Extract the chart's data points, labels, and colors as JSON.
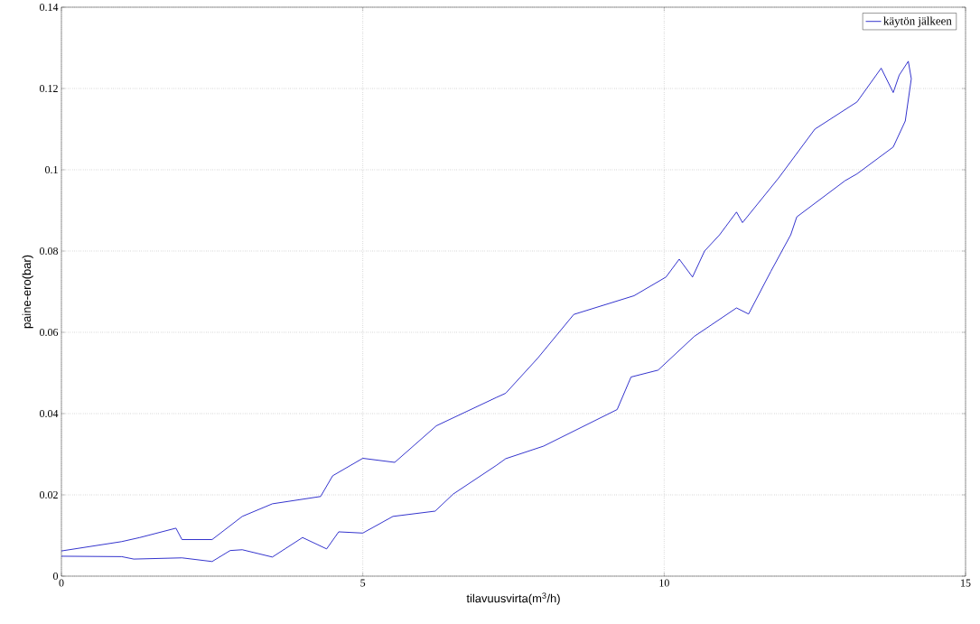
{
  "chart_data": {
    "type": "line",
    "xlabel": "tilavuusvirta(m$^{3}$/h)",
    "ylabel": "paine-ero(bar)",
    "xlim": [
      0,
      15
    ],
    "ylim": [
      0,
      0.14
    ],
    "xticks": [
      0,
      5,
      10,
      15
    ],
    "yticks": [
      0,
      0.02,
      0.04,
      0.06,
      0.08,
      0.1,
      0.12,
      0.14
    ],
    "grid": true,
    "legend": "top right",
    "marker": "none",
    "line_style": "solid",
    "series": [
      {
        "name": "käytön jälkeen",
        "color": "#0000c0",
        "x": [
          0,
          1,
          1.2,
          2,
          2.5,
          2.8,
          3.0,
          3.5,
          4,
          4.4,
          4.6,
          5,
          5.5,
          6.2,
          6.5,
          7.22,
          7.37,
          8,
          9.22,
          9.45,
          9.9,
          10.5,
          11.2,
          11.4,
          11.77,
          12.1,
          12.2,
          13.0,
          13.2,
          13.8,
          14.0,
          14.1,
          14.05,
          13.9,
          13.8,
          13.6,
          13.2,
          12.5,
          11.9,
          11.3,
          11.2,
          10.92,
          10.67,
          10.47,
          10.25,
          10.03,
          9.5,
          8.5,
          7.9,
          7.37,
          7.22,
          6.22,
          5.53,
          5,
          4.5,
          4.3,
          3.5,
          3,
          2.5,
          2,
          1.9,
          1.3,
          1,
          0
        ],
        "values": [
          0.0049,
          0.0048,
          0.0042,
          0.0045,
          0.0036,
          0.0063,
          0.0065,
          0.0047,
          0.0095,
          0.0067,
          0.0109,
          0.0106,
          0.0147,
          0.016,
          0.0202,
          0.0273,
          0.0289,
          0.032,
          0.041,
          0.049,
          0.0507,
          0.059,
          0.066,
          0.0645,
          0.075,
          0.084,
          0.0884,
          0.0973,
          0.099,
          0.1056,
          0.112,
          0.1224,
          0.1267,
          0.1233,
          0.119,
          0.125,
          0.1167,
          0.11,
          0.098,
          0.087,
          0.0896,
          0.084,
          0.08,
          0.0736,
          0.078,
          0.0736,
          0.069,
          0.0644,
          0.0536,
          0.045,
          0.044,
          0.037,
          0.028,
          0.029,
          0.0247,
          0.0196,
          0.0178,
          0.0147,
          0.009,
          0.009,
          0.0118,
          0.0095,
          0.0085,
          0.0062
        ]
      }
    ]
  }
}
